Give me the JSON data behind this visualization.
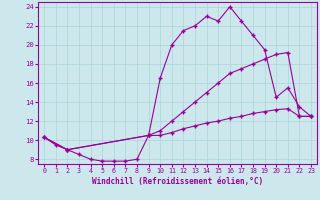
{
  "xlabel": "Windchill (Refroidissement éolien,°C)",
  "xlim": [
    -0.5,
    23.5
  ],
  "ylim": [
    7.5,
    24.5
  ],
  "yticks": [
    8,
    10,
    12,
    14,
    16,
    18,
    20,
    22,
    24
  ],
  "xticks": [
    0,
    1,
    2,
    3,
    4,
    5,
    6,
    7,
    8,
    9,
    10,
    11,
    12,
    13,
    14,
    15,
    16,
    17,
    18,
    19,
    20,
    21,
    22,
    23
  ],
  "bg_color": "#cce8ec",
  "grid_color": "#aad4d8",
  "line_color": "#990099",
  "curve1_x": [
    0,
    1,
    2,
    3,
    4,
    5,
    6,
    7,
    8,
    9,
    10,
    11,
    12,
    13,
    14,
    15,
    16,
    17,
    18,
    19,
    20,
    21,
    22,
    23
  ],
  "curve1_y": [
    10.3,
    9.5,
    9.0,
    8.5,
    8.0,
    7.8,
    7.8,
    7.8,
    8.0,
    10.5,
    16.5,
    20.0,
    21.5,
    22.0,
    23.0,
    22.5,
    24.0,
    22.5,
    21.0,
    19.5,
    14.5,
    15.5,
    13.5,
    12.5
  ],
  "curve2_x": [
    0,
    2,
    9,
    10,
    11,
    12,
    13,
    14,
    15,
    16,
    17,
    18,
    19,
    20,
    21,
    22,
    23
  ],
  "curve2_y": [
    10.3,
    9.0,
    10.5,
    11.0,
    12.0,
    13.0,
    14.0,
    15.0,
    16.0,
    17.0,
    17.5,
    18.0,
    18.5,
    19.0,
    19.2,
    12.5,
    12.5
  ],
  "curve3_x": [
    0,
    2,
    9,
    10,
    11,
    12,
    13,
    14,
    15,
    16,
    17,
    18,
    19,
    20,
    21,
    22,
    23
  ],
  "curve3_y": [
    10.3,
    9.0,
    10.5,
    10.5,
    10.8,
    11.2,
    11.5,
    11.8,
    12.0,
    12.3,
    12.5,
    12.8,
    13.0,
    13.2,
    13.3,
    12.5,
    12.5
  ]
}
